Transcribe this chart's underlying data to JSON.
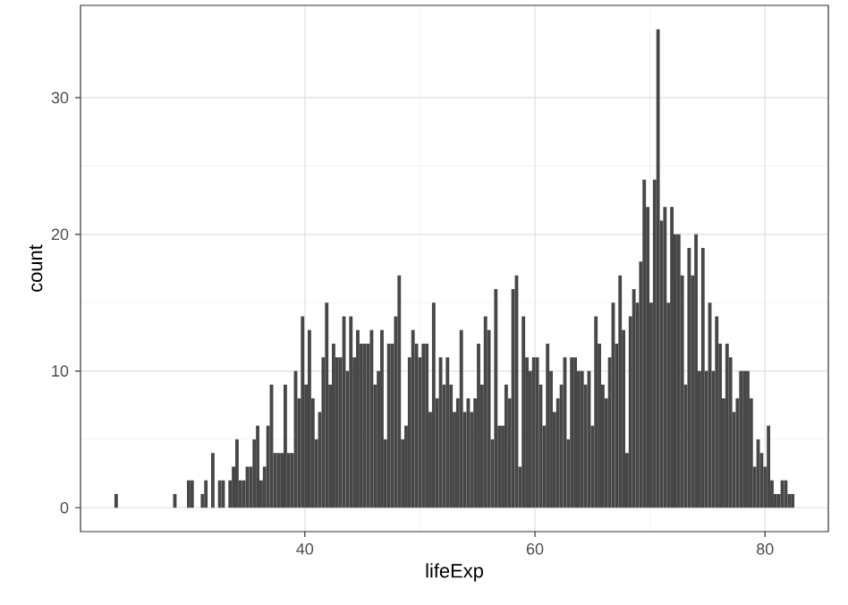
{
  "chart_data": {
    "type": "histogram",
    "xlabel": "lifeExp",
    "ylabel": "count",
    "bins": [
      23.45,
      23.75,
      24.05,
      24.35,
      24.65,
      24.95,
      25.25,
      25.55,
      25.85,
      26.15,
      26.45,
      26.75,
      27.05,
      27.35,
      27.65,
      27.95,
      28.25,
      28.55,
      28.85,
      29.15,
      29.45,
      29.75,
      30.05,
      30.35,
      30.65,
      30.95,
      31.25,
      31.55,
      31.85,
      32.15,
      32.45,
      32.75,
      33.05,
      33.35,
      33.65,
      33.95,
      34.25,
      34.55,
      34.85,
      35.15,
      35.45,
      35.75,
      36.05,
      36.35,
      36.65,
      36.95,
      37.25,
      37.55,
      37.85,
      38.15,
      38.45,
      38.75,
      39.05,
      39.35,
      39.65,
      39.95,
      40.25,
      40.55,
      40.85,
      41.15,
      41.45,
      41.75,
      42.05,
      42.35,
      42.65,
      42.95,
      43.25,
      43.55,
      43.85,
      44.15,
      44.45,
      44.75,
      45.05,
      45.35,
      45.65,
      45.95,
      46.25,
      46.55,
      46.85,
      47.15,
      47.45,
      47.75,
      48.05,
      48.35,
      48.65,
      48.95,
      49.25,
      49.55,
      49.85,
      50.15,
      50.45,
      50.75,
      51.05,
      51.35,
      51.65,
      51.95,
      52.25,
      52.55,
      52.85,
      53.15,
      53.45,
      53.75,
      54.05,
      54.35,
      54.65,
      54.95,
      55.25,
      55.55,
      55.85,
      56.15,
      56.45,
      56.75,
      57.05,
      57.35,
      57.65,
      57.95,
      58.25,
      58.55,
      58.85,
      59.15,
      59.45,
      59.75,
      60.05,
      60.35,
      60.65,
      60.95,
      61.25,
      61.55,
      61.85,
      62.15,
      62.45,
      62.75,
      63.05,
      63.35,
      63.65,
      63.95,
      64.25,
      64.55,
      64.85,
      65.15,
      65.45,
      65.75,
      66.05,
      66.35,
      66.65,
      66.95,
      67.25,
      67.55,
      67.85,
      68.15,
      68.45,
      68.75,
      69.05,
      69.35,
      69.65,
      69.95,
      70.25,
      70.55,
      70.85,
      71.15,
      71.45,
      71.75,
      72.05,
      72.35,
      72.65,
      72.95,
      73.25,
      73.55,
      73.85,
      74.15,
      74.45,
      74.75,
      75.05,
      75.35,
      75.65,
      75.95,
      76.25,
      76.55,
      76.85,
      77.15,
      77.45,
      77.75,
      78.05,
      78.35,
      78.65,
      78.95,
      79.25,
      79.55,
      79.85,
      80.15,
      80.45,
      80.75,
      81.05,
      81.35,
      81.65,
      81.95,
      82.25,
      82.55
    ],
    "values": [
      1,
      0,
      0,
      0,
      0,
      0,
      0,
      0,
      0,
      0,
      0,
      0,
      0,
      0,
      0,
      0,
      0,
      1,
      0,
      0,
      0,
      2,
      2,
      0,
      0,
      1,
      2,
      0,
      4,
      0,
      2,
      2,
      0,
      2,
      3,
      5,
      2,
      2,
      3,
      3,
      5,
      6,
      2,
      3,
      6,
      9,
      4,
      4,
      4,
      9,
      4,
      4,
      10,
      8,
      14,
      9,
      13,
      8,
      5,
      7,
      11,
      15,
      9,
      12,
      11,
      11,
      14,
      10,
      14,
      11,
      13,
      12,
      12,
      12,
      13,
      9,
      10,
      13,
      5,
      12,
      12,
      14,
      17,
      5,
      6,
      11,
      13,
      12,
      11,
      12,
      12,
      7,
      15,
      8,
      11,
      9,
      11,
      9,
      7,
      8,
      13,
      7,
      8,
      7,
      8,
      12,
      9,
      14,
      13,
      5,
      16,
      6,
      6,
      9,
      8,
      16,
      17,
      3,
      14,
      11,
      10,
      11,
      11,
      9,
      6,
      12,
      10,
      7,
      8,
      9,
      11,
      5,
      11,
      11,
      10,
      10,
      9,
      10,
      6,
      14,
      12,
      9,
      8,
      11,
      15,
      12,
      17,
      13,
      4,
      14,
      16,
      15,
      18,
      24,
      22,
      15,
      24,
      35,
      21,
      22,
      15,
      22,
      20,
      20,
      17,
      9,
      19,
      17,
      20,
      10,
      19,
      10,
      15,
      10,
      14,
      12,
      8,
      12,
      11,
      7,
      8,
      10,
      10,
      10,
      8,
      3,
      5,
      4,
      3,
      6,
      2,
      1,
      1,
      2,
      2,
      1,
      1
    ],
    "color": "#474747",
    "xlim": [
      20.5,
      85.5
    ],
    "ylim": [
      -1.75,
      36.75
    ],
    "xticks": [
      40,
      60,
      80
    ],
    "yticks": [
      0,
      10,
      20,
      30
    ],
    "grid": true
  }
}
